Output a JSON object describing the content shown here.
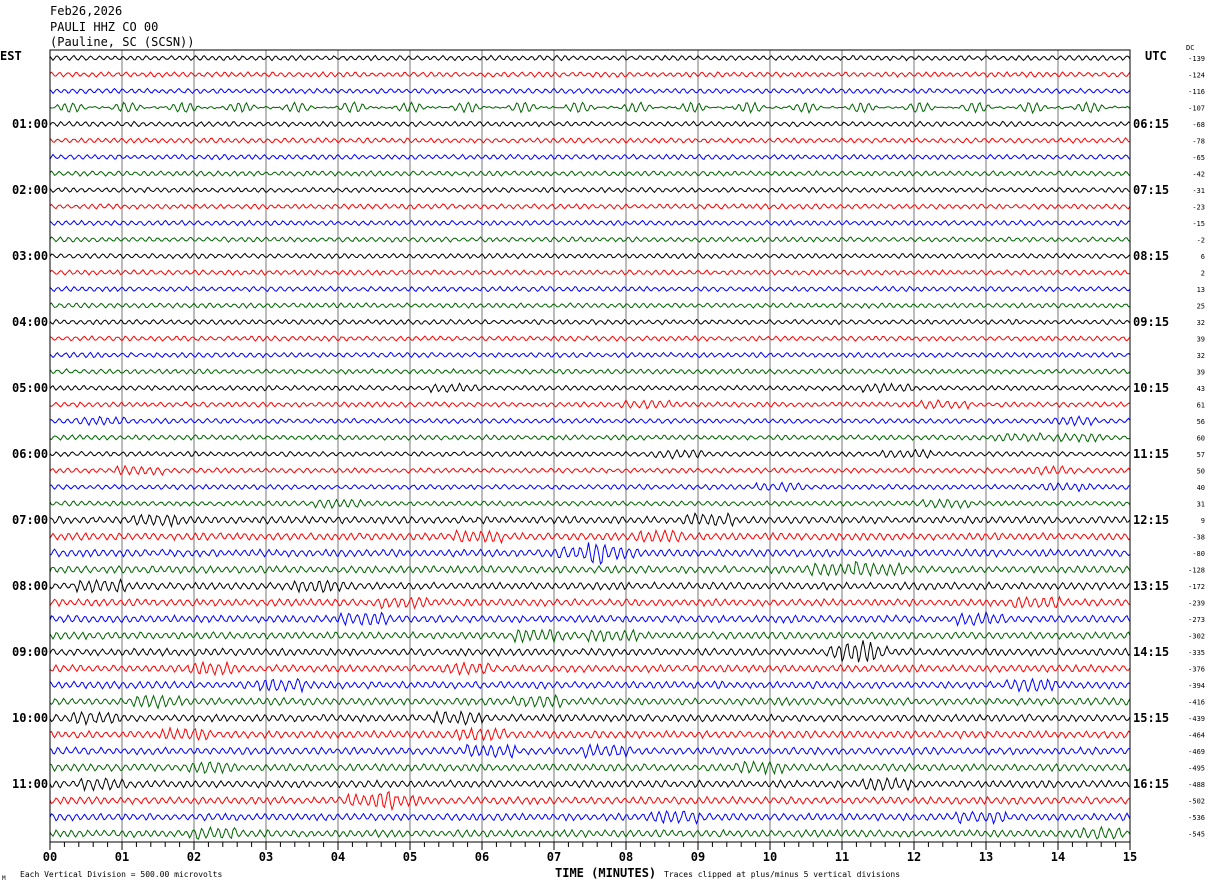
{
  "header": {
    "date": "Feb26,2026",
    "station": "PAULI HHZ CO 00",
    "location": "(Pauline, SC (SCSN))"
  },
  "chart_data": {
    "type": "line",
    "title": "PAULI HHZ CO 00 helicorder",
    "left_timezone": "EST",
    "right_timezone": "UTC",
    "dc_label": "DC",
    "xlabel": "TIME (MINUTES)",
    "x_ticks": [
      "00",
      "01",
      "02",
      "03",
      "04",
      "05",
      "06",
      "07",
      "08",
      "09",
      "10",
      "11",
      "12",
      "13",
      "14",
      "15"
    ],
    "xlim": [
      0,
      15
    ],
    "traces_per_hour": 4,
    "num_traces": 48,
    "trace_colors": [
      "#000000",
      "#ff0000",
      "#0000ff",
      "#006400"
    ],
    "left_hour_labels": [
      "01:00",
      "02:00",
      "03:00",
      "04:00",
      "05:00",
      "06:00",
      "07:00",
      "08:00",
      "09:00",
      "10:00",
      "11:00"
    ],
    "right_hour_labels": [
      "06:15",
      "07:15",
      "08:15",
      "09:15",
      "10:15",
      "11:15",
      "12:15",
      "13:15",
      "14:15",
      "15:15",
      "16:15"
    ],
    "dc_offsets": [
      -139,
      -124,
      -116,
      -107,
      -68,
      -78,
      -65,
      -42,
      -31,
      -23,
      -15,
      -2,
      6,
      2,
      13,
      25,
      32,
      39,
      32,
      39,
      43,
      61,
      56,
      60,
      57,
      50,
      40,
      31,
      9,
      -38,
      -80,
      -128,
      -172,
      -239,
      -273,
      -302,
      -335,
      -376,
      -394,
      -416,
      -439,
      -464,
      -469,
      -495,
      -488,
      -502,
      -536,
      -545
    ],
    "footer_left": "Each Vertical Division =  500.00 microvolts",
    "footer_right": "Traces clipped at plus/minus 5 vertical divisions",
    "corner_mark": "M"
  }
}
